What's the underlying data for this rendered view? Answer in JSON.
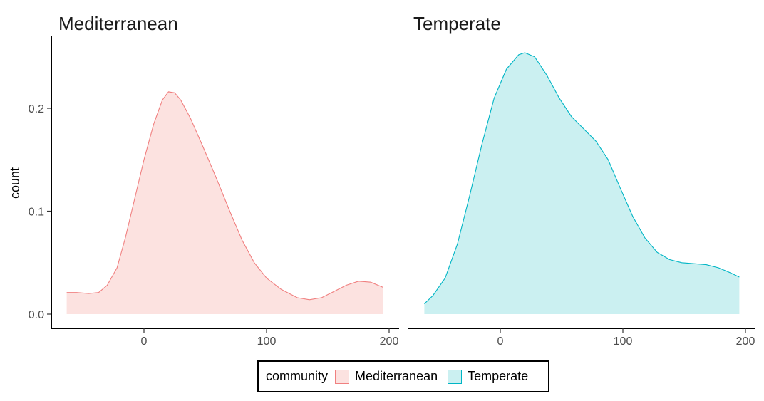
{
  "chart_data": {
    "type": "area",
    "ylabel": "count",
    "ylim": [
      0,
      0.26
    ],
    "xlim": [
      -75,
      200
    ],
    "x_ticks": [
      0,
      100,
      200
    ],
    "y_ticks": [
      0.0,
      0.1,
      0.2
    ],
    "y_tick_labels": [
      "0.0",
      "0.1",
      "0.2"
    ],
    "grid": false,
    "panels": [
      {
        "title": "Mediterranean",
        "series": {
          "name": "Mediterranean",
          "fill": "#fce2e0",
          "stroke": "#f08080",
          "points": [
            [
              -63,
              0.021
            ],
            [
              -55,
              0.021
            ],
            [
              -45,
              0.02
            ],
            [
              -37,
              0.021
            ],
            [
              -30,
              0.028
            ],
            [
              -22,
              0.045
            ],
            [
              -15,
              0.075
            ],
            [
              -8,
              0.11
            ],
            [
              0,
              0.15
            ],
            [
              8,
              0.185
            ],
            [
              15,
              0.208
            ],
            [
              20,
              0.216
            ],
            [
              25,
              0.215
            ],
            [
              30,
              0.208
            ],
            [
              38,
              0.19
            ],
            [
              48,
              0.163
            ],
            [
              58,
              0.135
            ],
            [
              70,
              0.1
            ],
            [
              80,
              0.072
            ],
            [
              90,
              0.05
            ],
            [
              100,
              0.035
            ],
            [
              112,
              0.024
            ],
            [
              125,
              0.016
            ],
            [
              135,
              0.014
            ],
            [
              145,
              0.016
            ],
            [
              155,
              0.022
            ],
            [
              165,
              0.028
            ],
            [
              175,
              0.032
            ],
            [
              185,
              0.031
            ],
            [
              195,
              0.026
            ]
          ]
        }
      },
      {
        "title": "Temperate",
        "series": {
          "name": "Temperate",
          "fill": "#cbf0f1",
          "stroke": "#00b5c5",
          "points": [
            [
              -62,
              0.01
            ],
            [
              -55,
              0.018
            ],
            [
              -45,
              0.035
            ],
            [
              -35,
              0.068
            ],
            [
              -25,
              0.115
            ],
            [
              -15,
              0.165
            ],
            [
              -5,
              0.21
            ],
            [
              5,
              0.238
            ],
            [
              15,
              0.252
            ],
            [
              20,
              0.254
            ],
            [
              28,
              0.25
            ],
            [
              38,
              0.232
            ],
            [
              48,
              0.21
            ],
            [
              58,
              0.192
            ],
            [
              68,
              0.18
            ],
            [
              78,
              0.168
            ],
            [
              88,
              0.15
            ],
            [
              98,
              0.122
            ],
            [
              108,
              0.095
            ],
            [
              118,
              0.074
            ],
            [
              128,
              0.06
            ],
            [
              138,
              0.053
            ],
            [
              148,
              0.05
            ],
            [
              158,
              0.049
            ],
            [
              168,
              0.048
            ],
            [
              178,
              0.045
            ],
            [
              188,
              0.04
            ],
            [
              195,
              0.036
            ]
          ]
        }
      }
    ],
    "legend": {
      "title": "community",
      "position": "bottom",
      "items": [
        {
          "label": "Mediterranean",
          "fill": "#fce2e0",
          "stroke": "#f08080"
        },
        {
          "label": "Temperate",
          "fill": "#cbf0f1",
          "stroke": "#00b5c5"
        }
      ]
    }
  }
}
